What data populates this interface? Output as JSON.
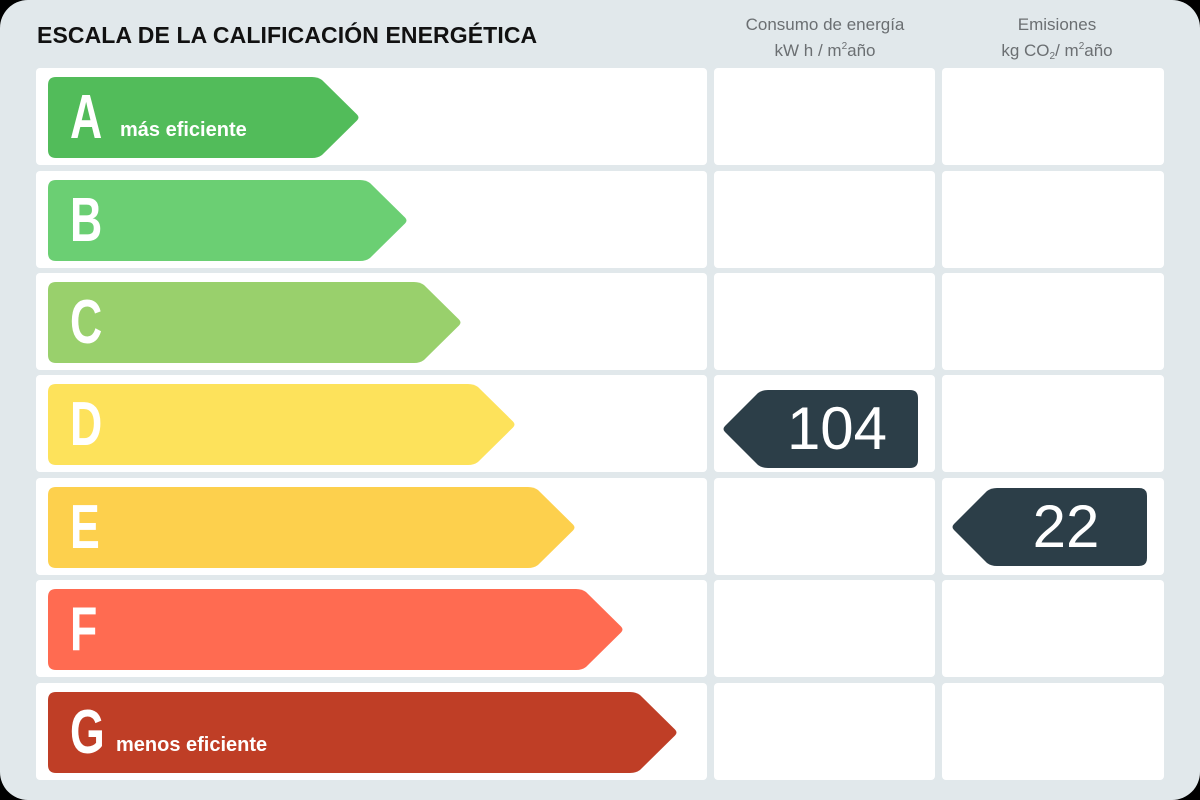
{
  "title": "ESCALA DE LA CALIFICACIÓN ENERGÉTICA",
  "columns": {
    "energy": {
      "line1": "Consumo de energía",
      "unit_prefix": "kW h / m",
      "unit_sup": "2",
      "unit_suffix": "año"
    },
    "emissions": {
      "line1": "Emisiones",
      "unit_prefix": "kg CO",
      "unit_sub": "2",
      "unit_mid": "/ m",
      "unit_sup": "2",
      "unit_suffix": "año"
    }
  },
  "ratings": [
    {
      "letter": "A",
      "label": "más eficiente",
      "color": "#52bc5a"
    },
    {
      "letter": "B",
      "label": "",
      "color": "#6bcf73"
    },
    {
      "letter": "C",
      "label": "",
      "color": "#99d06c"
    },
    {
      "letter": "D",
      "label": "",
      "color": "#fde25b"
    },
    {
      "letter": "E",
      "label": "",
      "color": "#fdd04d"
    },
    {
      "letter": "F",
      "label": "",
      "color": "#ff6b51"
    },
    {
      "letter": "G",
      "label": "menos eficiente",
      "color": "#bf3e26"
    }
  ],
  "energy_value": {
    "value": "104",
    "rating": "D",
    "color": "#2c3e48"
  },
  "emissions_value": {
    "value": "22",
    "rating": "E",
    "color": "#2c3e48"
  },
  "chart_data": {
    "type": "table",
    "title": "ESCALA DE LA CALIFICACIÓN ENERGÉTICA",
    "categories": [
      "A",
      "B",
      "C",
      "D",
      "E",
      "F",
      "G"
    ],
    "series": [
      {
        "name": "Consumo de energía kW h / m²año",
        "rating": "D",
        "value": 104
      },
      {
        "name": "Emisiones kg CO₂/ m²año",
        "rating": "E",
        "value": 22
      }
    ]
  }
}
